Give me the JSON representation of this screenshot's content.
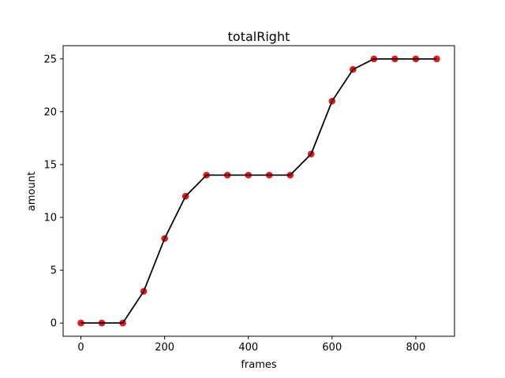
{
  "chart_data": {
    "type": "line",
    "title": "totalRight",
    "xlabel": "frames",
    "ylabel": "amount",
    "xlim": [
      -42.5,
      892.5
    ],
    "ylim": [
      -1.25,
      26.25
    ],
    "xticks": [
      0,
      200,
      400,
      600,
      800
    ],
    "yticks": [
      0,
      5,
      10,
      15,
      20,
      25
    ],
    "grid": false,
    "line_color": "#000000",
    "marker_color": "#e41a1c",
    "series": [
      {
        "x": [
          0,
          50,
          100,
          150,
          200,
          250,
          300,
          350,
          400,
          450,
          500,
          550,
          600,
          650,
          700,
          750,
          800,
          850
        ],
        "y": [
          0,
          0,
          0,
          3,
          8,
          12,
          14,
          14,
          14,
          14,
          14,
          16,
          21,
          24,
          25,
          25,
          25,
          25
        ]
      }
    ]
  }
}
